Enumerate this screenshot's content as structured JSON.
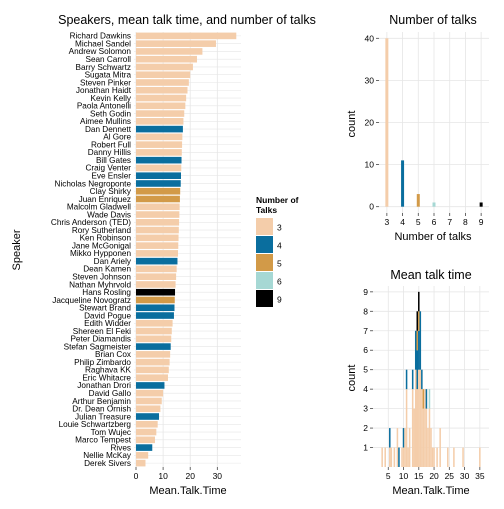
{
  "colors": {
    "3": "#F4CDAA",
    "4": "#0A6E9E",
    "5": "#D29A48",
    "6": "#A6D8D4",
    "9": "#000000",
    "panel": "#FFFFFF",
    "grid": "#E6E6E6"
  },
  "chart_data": [
    {
      "type": "bar",
      "orientation": "horizontal",
      "title": "Speakers, mean talk time, and number of talks",
      "xlabel": "Mean.Talk.Time",
      "ylabel": "Speaker",
      "xlim": [
        0,
        38
      ],
      "xticks": [
        0,
        10,
        20,
        30
      ],
      "grid": true,
      "legend": {
        "title_lines": [
          "Number of",
          "Talks"
        ],
        "entries": [
          "3",
          "4",
          "5",
          "6",
          "9"
        ],
        "placement": "right"
      },
      "bars": [
        {
          "speaker": "Richard Dawkins",
          "value": 37.0,
          "talks": "3"
        },
        {
          "speaker": "Michael Sandel",
          "value": 29.5,
          "talks": "3"
        },
        {
          "speaker": "Andrew Solomon",
          "value": 24.5,
          "talks": "3"
        },
        {
          "speaker": "Sean Carroll",
          "value": 22.5,
          "talks": "3"
        },
        {
          "speaker": "Barry Schwartz",
          "value": 21.0,
          "talks": "3"
        },
        {
          "speaker": "Sugata Mitra",
          "value": 20.0,
          "talks": "3"
        },
        {
          "speaker": "Steven Pinker",
          "value": 19.5,
          "talks": "3"
        },
        {
          "speaker": "Jonathan Haidt",
          "value": 19.0,
          "talks": "3"
        },
        {
          "speaker": "Kevin Kelly",
          "value": 18.5,
          "talks": "3"
        },
        {
          "speaker": "Paola Antonelli",
          "value": 18.2,
          "talks": "3"
        },
        {
          "speaker": "Seth Godin",
          "value": 17.8,
          "talks": "3"
        },
        {
          "speaker": "Aimee Mullins",
          "value": 17.5,
          "talks": "3"
        },
        {
          "speaker": "Dan Dennett",
          "value": 17.3,
          "talks": "4"
        },
        {
          "speaker": "Al Gore",
          "value": 17.1,
          "talks": "3"
        },
        {
          "speaker": "Robert Full",
          "value": 17.0,
          "talks": "3"
        },
        {
          "speaker": "Danny Hillis",
          "value": 16.9,
          "talks": "3"
        },
        {
          "speaker": "Bill Gates",
          "value": 16.8,
          "talks": "4"
        },
        {
          "speaker": "Craig Venter",
          "value": 16.7,
          "talks": "3"
        },
        {
          "speaker": "Eve Ensler",
          "value": 16.6,
          "talks": "4"
        },
        {
          "speaker": "Nicholas Negroponte",
          "value": 16.5,
          "talks": "4"
        },
        {
          "speaker": "Clay Shirky",
          "value": 16.3,
          "talks": "5"
        },
        {
          "speaker": "Juan Enriquez",
          "value": 16.2,
          "talks": "5"
        },
        {
          "speaker": "Malcolm Gladwell",
          "value": 16.1,
          "talks": "3"
        },
        {
          "speaker": "Wade Davis",
          "value": 16.0,
          "talks": "3"
        },
        {
          "speaker": "Chris Anderson (TED)",
          "value": 15.9,
          "talks": "3"
        },
        {
          "speaker": "Rory Sutherland",
          "value": 15.8,
          "talks": "3"
        },
        {
          "speaker": "Ken Robinson",
          "value": 15.7,
          "talks": "3"
        },
        {
          "speaker": "Jane McGonigal",
          "value": 15.6,
          "talks": "3"
        },
        {
          "speaker": "Mikko Hypponen",
          "value": 15.5,
          "talks": "3"
        },
        {
          "speaker": "Dan Ariely",
          "value": 15.3,
          "talks": "4"
        },
        {
          "speaker": "Dean Kamen",
          "value": 15.0,
          "talks": "3"
        },
        {
          "speaker": "Steven Johnson",
          "value": 14.8,
          "talks": "3"
        },
        {
          "speaker": "Nathan Myhrvold",
          "value": 14.6,
          "talks": "3"
        },
        {
          "speaker": "Hans Rosling",
          "value": 14.4,
          "talks": "9"
        },
        {
          "speaker": "Jacqueline Novogratz",
          "value": 14.3,
          "talks": "5"
        },
        {
          "speaker": "Stewart Brand",
          "value": 14.2,
          "talks": "4"
        },
        {
          "speaker": "David Pogue",
          "value": 14.0,
          "talks": "4"
        },
        {
          "speaker": "Edith Widder",
          "value": 13.5,
          "talks": "3"
        },
        {
          "speaker": "Shereen El Feki",
          "value": 13.2,
          "talks": "3"
        },
        {
          "speaker": "Peter Diamandis",
          "value": 13.0,
          "talks": "3"
        },
        {
          "speaker": "Stefan Sagmeister",
          "value": 12.8,
          "talks": "4"
        },
        {
          "speaker": "Brian Cox",
          "value": 12.6,
          "talks": "3"
        },
        {
          "speaker": "Philip Zimbardo",
          "value": 12.4,
          "talks": "3"
        },
        {
          "speaker": "Raghava KK",
          "value": 12.1,
          "talks": "3"
        },
        {
          "speaker": "Eric Whitacre",
          "value": 11.8,
          "talks": "3"
        },
        {
          "speaker": "Jonathan Drori",
          "value": 10.5,
          "talks": "4"
        },
        {
          "speaker": "David Gallo",
          "value": 10.0,
          "talks": "3"
        },
        {
          "speaker": "Arthur Benjamin",
          "value": 9.5,
          "talks": "3"
        },
        {
          "speaker": "Dr. Dean Ornish",
          "value": 9.0,
          "talks": "3"
        },
        {
          "speaker": "Julian Treasure",
          "value": 8.5,
          "talks": "4"
        },
        {
          "speaker": "Louie Schwartzberg",
          "value": 8.0,
          "talks": "3"
        },
        {
          "speaker": "Tom Wujec",
          "value": 7.5,
          "talks": "3"
        },
        {
          "speaker": "Marco Tempest",
          "value": 7.0,
          "talks": "3"
        },
        {
          "speaker": "Rives",
          "value": 6.0,
          "talks": "4"
        },
        {
          "speaker": "Nellie McKay",
          "value": 4.5,
          "talks": "3"
        },
        {
          "speaker": "Derek Sivers",
          "value": 3.5,
          "talks": "3"
        }
      ]
    },
    {
      "type": "bar",
      "title": "Number of talks",
      "xlabel": "Number of talks",
      "ylabel": "count",
      "xlim": [
        2.5,
        9.5
      ],
      "ylim": [
        -1.5,
        41.5
      ],
      "xticks": [
        3,
        4,
        5,
        6,
        7,
        8,
        9
      ],
      "yticks": [
        0,
        10,
        20,
        30,
        40
      ],
      "grid": true,
      "series": [
        {
          "talks": "3",
          "x": 3,
          "count": 40
        },
        {
          "talks": "4",
          "x": 4,
          "count": 11
        },
        {
          "talks": "5",
          "x": 5,
          "count": 3
        },
        {
          "talks": "6",
          "x": 6,
          "count": 1
        },
        {
          "talks": "9",
          "x": 9,
          "count": 1
        }
      ]
    },
    {
      "type": "bar",
      "subtype": "stacked histogram",
      "title": "Mean talk time",
      "xlabel": "Mean.Talk.Time",
      "ylabel": "count",
      "xlim": [
        0,
        38
      ],
      "ylim": [
        0,
        9.3
      ],
      "xticks": [
        5,
        10,
        15,
        20,
        25,
        30,
        35
      ],
      "yticks": [
        1,
        2,
        3,
        4,
        5,
        6,
        7,
        8,
        9
      ],
      "grid": true,
      "bin_width": 0.5,
      "bins": [
        {
          "x": 3.0,
          "counts": {
            "3": 1
          }
        },
        {
          "x": 4.0,
          "counts": {
            "3": 1
          }
        },
        {
          "x": 5.5,
          "counts": {
            "3": 1,
            "4": 1
          }
        },
        {
          "x": 6.0,
          "counts": {
            "3": 1
          }
        },
        {
          "x": 7.0,
          "counts": {
            "3": 1
          }
        },
        {
          "x": 8.0,
          "counts": {
            "3": 2
          }
        },
        {
          "x": 8.5,
          "counts": {
            "4": 1
          }
        },
        {
          "x": 9.5,
          "counts": {
            "3": 1
          }
        },
        {
          "x": 10.0,
          "counts": {
            "3": 1,
            "4": 1
          }
        },
        {
          "x": 10.5,
          "counts": {
            "3": 2
          }
        },
        {
          "x": 11.0,
          "counts": {
            "3": 4,
            "4": 1
          }
        },
        {
          "x": 11.5,
          "counts": {
            "3": 1
          }
        },
        {
          "x": 12.0,
          "counts": {
            "3": 2
          }
        },
        {
          "x": 13.0,
          "counts": {
            "3": 4,
            "4": 1
          }
        },
        {
          "x": 13.5,
          "counts": {
            "3": 3
          }
        },
        {
          "x": 14.0,
          "counts": {
            "3": 5,
            "4": 2
          }
        },
        {
          "x": 14.5,
          "counts": {
            "3": 4,
            "4": 2,
            "5": 1,
            "9": 1
          }
        },
        {
          "x": 15.0,
          "counts": {
            "3": 5,
            "4": 2,
            "5": 1,
            "9": 1
          }
        },
        {
          "x": 15.5,
          "counts": {
            "3": 5,
            "4": 3
          }
        },
        {
          "x": 16.0,
          "counts": {
            "3": 4,
            "4": 1
          }
        },
        {
          "x": 16.5,
          "counts": {
            "3": 3,
            "5": 1
          }
        },
        {
          "x": 17.0,
          "counts": {
            "3": 4
          }
        },
        {
          "x": 17.5,
          "counts": {
            "3": 3,
            "4": 1
          }
        },
        {
          "x": 18.0,
          "counts": {
            "3": 2
          }
        },
        {
          "x": 18.5,
          "counts": {
            "3": 3,
            "6": 1
          }
        },
        {
          "x": 19.0,
          "counts": {
            "3": 2
          }
        },
        {
          "x": 19.5,
          "counts": {
            "3": 1
          }
        },
        {
          "x": 20.0,
          "counts": {
            "3": 1
          }
        },
        {
          "x": 21.0,
          "counts": {
            "3": 1
          }
        },
        {
          "x": 22.0,
          "counts": {
            "3": 2
          }
        },
        {
          "x": 24.5,
          "counts": {
            "3": 1
          }
        },
        {
          "x": 26.5,
          "counts": {
            "3": 1
          }
        },
        {
          "x": 29.5,
          "counts": {
            "3": 1
          }
        },
        {
          "x": 35.0,
          "counts": {
            "3": 1
          }
        }
      ]
    }
  ]
}
